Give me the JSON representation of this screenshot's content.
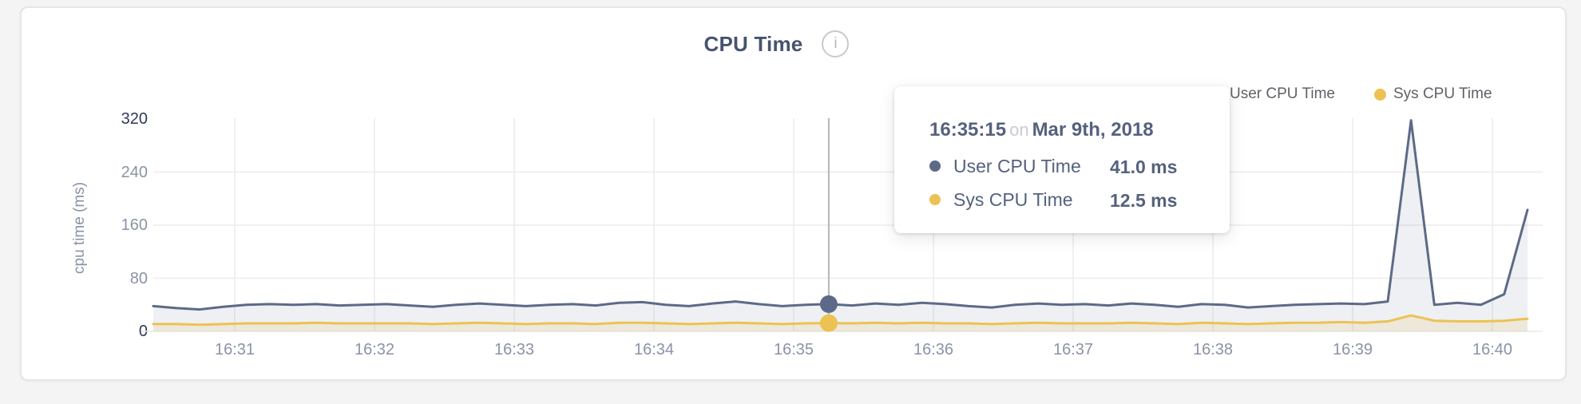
{
  "page": {
    "background": "#f4f4f5"
  },
  "card": {
    "background": "#ffffff",
    "border_color": "#e6e6e7"
  },
  "chart_data": {
    "type": "area",
    "title": "CPU Time",
    "info_icon": "i",
    "ylabel": "cpu time (ms)",
    "xlabel": "",
    "grid": true,
    "legend_position": "top-right",
    "ylim": [
      0,
      320
    ],
    "y_ticks": [
      0,
      80,
      160,
      240,
      320
    ],
    "x_ticks": [
      "16:31",
      "16:32",
      "16:33",
      "16:34",
      "16:35",
      "16:36",
      "16:37",
      "16:38",
      "16:39",
      "16:40"
    ],
    "x_start": "16:30:25",
    "x_interval_seconds": 10,
    "grid_color": "#ececec",
    "crosshair_color": "#b6b6b6",
    "series": [
      {
        "name": "User CPU Time",
        "color": "#5d6a87",
        "fill": "rgba(93,106,135,0.10)",
        "values": [
          38,
          35,
          33,
          37,
          40,
          41,
          40,
          41,
          39,
          40,
          41,
          39,
          37,
          40,
          42,
          40,
          38,
          40,
          41,
          39,
          43,
          44,
          40,
          38,
          42,
          45,
          41,
          38,
          40,
          41,
          39,
          42,
          40,
          43,
          41,
          38,
          36,
          40,
          42,
          40,
          41,
          39,
          42,
          40,
          37,
          41,
          40,
          36,
          38,
          40,
          41,
          42,
          41,
          45,
          318,
          40,
          43,
          40,
          56,
          183
        ]
      },
      {
        "name": "Sys CPU Time",
        "color": "#edc254",
        "fill": "rgba(237,194,84,0.16)",
        "values": [
          11,
          11,
          10,
          11,
          12,
          12,
          12,
          13,
          12,
          12,
          12,
          12,
          11,
          12,
          13,
          12,
          11,
          12,
          12,
          11,
          13,
          13,
          12,
          11,
          12,
          13,
          12,
          11,
          12,
          12.5,
          12,
          13,
          12,
          13,
          12,
          12,
          11,
          12,
          13,
          12,
          12,
          12,
          13,
          12,
          11,
          13,
          12,
          11,
          12,
          13,
          13,
          14,
          13,
          15,
          24,
          16,
          15,
          15,
          16,
          19
        ]
      }
    ],
    "tooltip": {
      "hover_index": 29,
      "time": "16:35:15",
      "connector": "on",
      "date": "Mar 9th, 2018",
      "rows": [
        {
          "label": "User CPU Time",
          "value": "41.0 ms"
        },
        {
          "label": "Sys CPU Time",
          "value": "12.5 ms"
        }
      ]
    }
  }
}
